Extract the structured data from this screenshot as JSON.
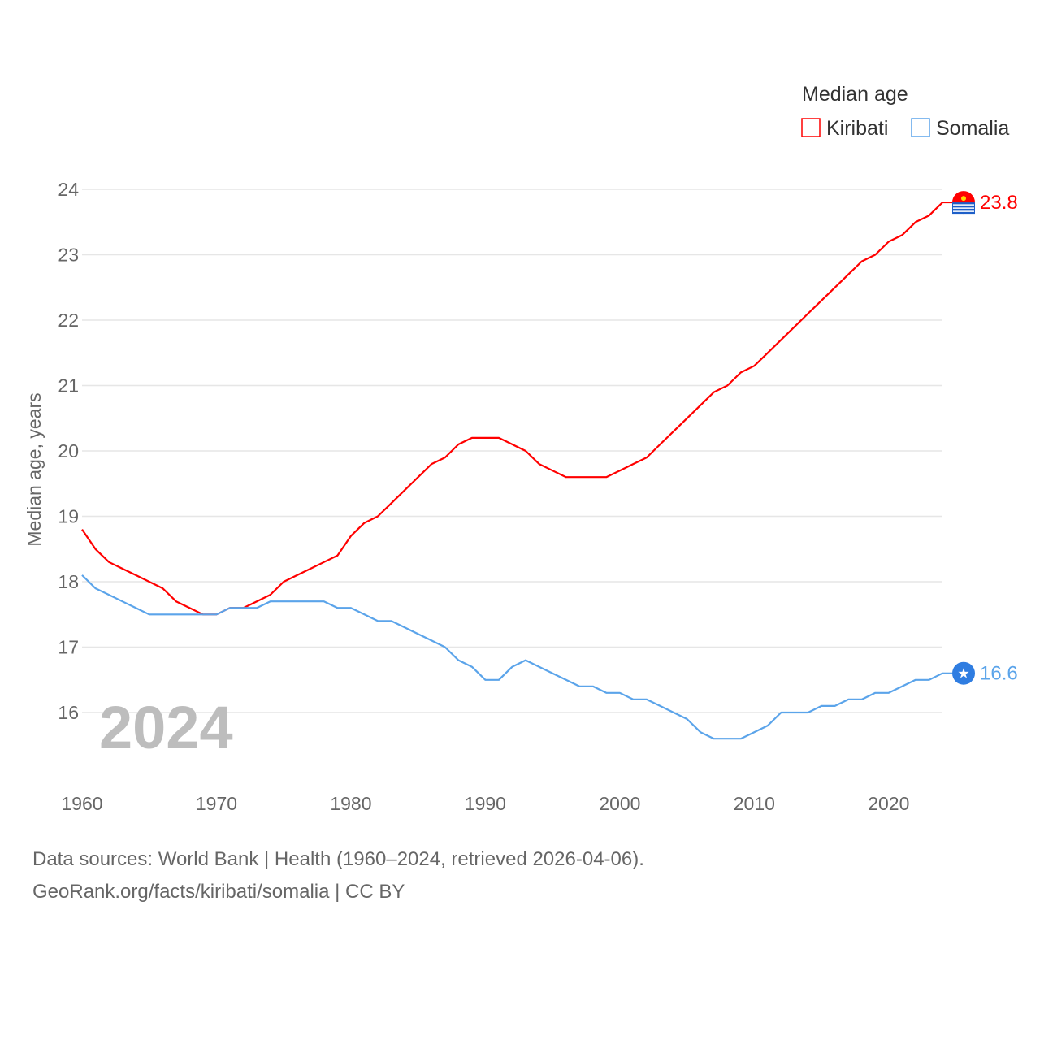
{
  "chart_data": {
    "type": "line",
    "title": "Median age",
    "ylabel": "Median age, years",
    "xlabel": "",
    "ylim": [
      15.4,
      24.2
    ],
    "xlim": [
      1960,
      2024
    ],
    "yticks": [
      16,
      17,
      18,
      19,
      20,
      21,
      22,
      23,
      24
    ],
    "xticks": [
      1960,
      1970,
      1980,
      1990,
      2000,
      2010,
      2020
    ],
    "grid": true,
    "legend_position": "top-right",
    "year_label": "2024",
    "x": [
      1960,
      1961,
      1962,
      1963,
      1964,
      1965,
      1966,
      1967,
      1968,
      1969,
      1970,
      1971,
      1972,
      1973,
      1974,
      1975,
      1976,
      1977,
      1978,
      1979,
      1980,
      1981,
      1982,
      1983,
      1984,
      1985,
      1986,
      1987,
      1988,
      1989,
      1990,
      1991,
      1992,
      1993,
      1994,
      1995,
      1996,
      1997,
      1998,
      1999,
      2000,
      2001,
      2002,
      2003,
      2004,
      2005,
      2006,
      2007,
      2008,
      2009,
      2010,
      2011,
      2012,
      2013,
      2014,
      2015,
      2016,
      2017,
      2018,
      2019,
      2020,
      2021,
      2022,
      2023,
      2024
    ],
    "series": [
      {
        "name": "Kiribati",
        "color": "#ff0000",
        "end_label": "23.8",
        "icon": "kiribati-flag-icon",
        "values": [
          18.8,
          18.5,
          18.3,
          18.2,
          18.1,
          18.0,
          17.9,
          17.7,
          17.6,
          17.5,
          17.5,
          17.6,
          17.6,
          17.7,
          17.8,
          18.0,
          18.1,
          18.2,
          18.3,
          18.4,
          18.7,
          18.9,
          19.0,
          19.2,
          19.4,
          19.6,
          19.8,
          19.9,
          20.1,
          20.2,
          20.2,
          20.2,
          20.1,
          20.0,
          19.8,
          19.7,
          19.6,
          19.6,
          19.6,
          19.6,
          19.7,
          19.8,
          19.9,
          20.1,
          20.3,
          20.5,
          20.7,
          20.9,
          21.0,
          21.2,
          21.3,
          21.5,
          21.7,
          21.9,
          22.1,
          22.3,
          22.5,
          22.7,
          22.9,
          23.0,
          23.2,
          23.3,
          23.5,
          23.6,
          23.8
        ]
      },
      {
        "name": "Somalia",
        "color": "#5ba4ea",
        "end_label": "16.6",
        "icon": "somalia-flag-icon",
        "values": [
          18.1,
          17.9,
          17.8,
          17.7,
          17.6,
          17.5,
          17.5,
          17.5,
          17.5,
          17.5,
          17.5,
          17.6,
          17.6,
          17.6,
          17.7,
          17.7,
          17.7,
          17.7,
          17.7,
          17.6,
          17.6,
          17.5,
          17.4,
          17.4,
          17.3,
          17.2,
          17.1,
          17.0,
          16.8,
          16.7,
          16.5,
          16.5,
          16.7,
          16.8,
          16.7,
          16.6,
          16.5,
          16.4,
          16.4,
          16.3,
          16.3,
          16.2,
          16.2,
          16.1,
          16.0,
          15.9,
          15.7,
          15.6,
          15.6,
          15.6,
          15.7,
          15.8,
          16.0,
          16.0,
          16.0,
          16.1,
          16.1,
          16.2,
          16.2,
          16.3,
          16.3,
          16.4,
          16.5,
          16.5,
          16.6
        ]
      }
    ]
  },
  "footer": {
    "line1": "Data sources: World Bank | Health (1960–2024, retrieved 2026-04-06).",
    "line2": "GeoRank.org/facts/kiribati/somalia | CC BY"
  }
}
